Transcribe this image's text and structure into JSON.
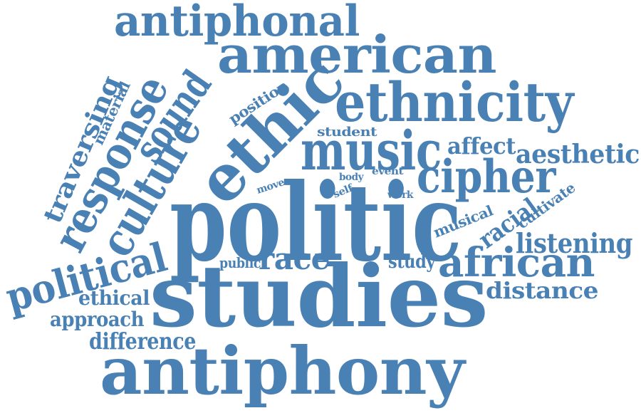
{
  "cloud": {
    "color": "#4a81b4",
    "words": {
      "antiphonal": "antiphonal",
      "american": "american",
      "ethnicity": "ethnicity",
      "sound": "sound",
      "position": "position",
      "ethic": "ethic",
      "traversing": "traversing",
      "material": "material",
      "response": "response",
      "culture": "culture",
      "student": "student",
      "music": "music",
      "affect": "affect",
      "aesthetic": "aesthetic",
      "body": "body",
      "event": "event",
      "move": "move",
      "self": "self",
      "work": "work",
      "cipher": "cipher",
      "cultivate": "cultivate",
      "racial": "racial",
      "musical": "musical",
      "politic": "politic",
      "listening": "listening",
      "political": "political",
      "public": "public",
      "race": "race",
      "study": "study",
      "african": "african",
      "ethical": "ethical",
      "distance": "distance",
      "studies": "studies",
      "approach": "approach",
      "difference": "difference",
      "antiphony": "antiphony"
    }
  }
}
